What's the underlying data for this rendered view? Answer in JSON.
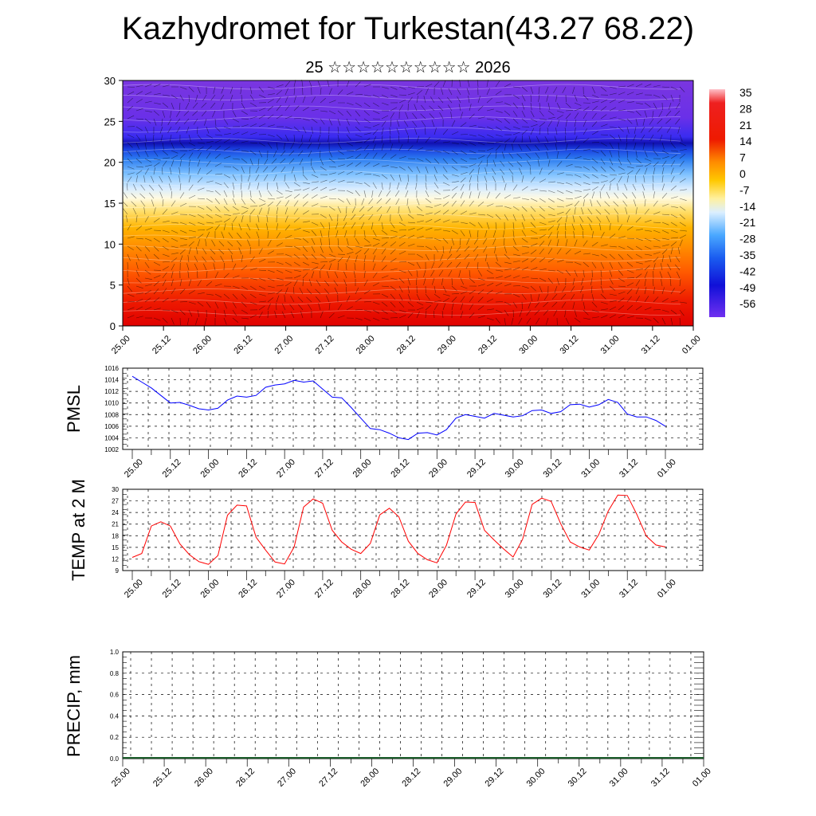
{
  "title": "Kazhydromet for Turkestan(43.27 68.22)",
  "subtitle": "25 ☆☆☆☆☆☆☆☆☆☆ 2026",
  "time_labels": [
    "25.00",
    "25.12",
    "26.00",
    "26.12",
    "27.00",
    "27.12",
    "28.00",
    "28.12",
    "29.00",
    "29.12",
    "30.00",
    "30.12",
    "31.00",
    "31.12",
    "01.00"
  ],
  "colors": {
    "pmsl": "#0000ff",
    "temp": "#ff0000",
    "precip_base": "#1a5c2a",
    "grid": "#000000"
  },
  "chart_data": [
    {
      "type": "heatmap",
      "name": "cross-section",
      "ylabel": "",
      "ylim": [
        0,
        30
      ],
      "y_ticks": [
        0,
        5,
        10,
        15,
        20,
        25,
        30
      ],
      "colorbar_labels": [
        "35",
        "28",
        "21",
        "14",
        "7",
        "0",
        "-7",
        "-14",
        "-21",
        "-28",
        "-35",
        "-42",
        "-49",
        "-56"
      ],
      "colorbar_range": [
        -60,
        38
      ]
    },
    {
      "type": "line",
      "name": "pmsl",
      "ylabel": "PMSL",
      "ylim": [
        1002,
        1016
      ],
      "y_ticks": [
        1002,
        1004,
        1006,
        1008,
        1010,
        1012,
        1014,
        1016
      ],
      "x": [
        0,
        0.25,
        0.5,
        0.75,
        1,
        1.25,
        1.5,
        1.75,
        2,
        2.25,
        2.5,
        2.75,
        3,
        3.25,
        3.5,
        3.75,
        4,
        4.25,
        4.5,
        4.75,
        5,
        5.25,
        5.5,
        5.75,
        6,
        6.25,
        6.5,
        6.75,
        7,
        7.25,
        7.5,
        7.75,
        8,
        8.25,
        8.5,
        8.75,
        9,
        9.25,
        9.5,
        9.75,
        10,
        10.25,
        10.5,
        10.75,
        11,
        11.25,
        11.5,
        11.75,
        12,
        12.25,
        12.5,
        12.75,
        13,
        13.25,
        13.5,
        13.75,
        14
      ],
      "values": [
        1014.6,
        1013.6,
        1012.6,
        1011.3,
        1010.0,
        1010.1,
        1009.6,
        1009.0,
        1008.8,
        1009.1,
        1010.5,
        1011.2,
        1011.0,
        1011.3,
        1012.7,
        1013.1,
        1013.3,
        1013.9,
        1013.6,
        1013.8,
        1012.4,
        1011.0,
        1010.9,
        1009.2,
        1007.4,
        1005.6,
        1005.4,
        1004.8,
        1004.0,
        1003.7,
        1004.8,
        1004.9,
        1004.5,
        1005.4,
        1007.4,
        1008.0,
        1007.7,
        1007.4,
        1008.2,
        1007.9,
        1007.6,
        1007.8,
        1008.7,
        1008.8,
        1008.2,
        1008.5,
        1009.7,
        1009.8,
        1009.3,
        1009.7,
        1010.6,
        1010.1,
        1008.1,
        1007.6,
        1007.6,
        1007.0,
        1006.0
      ]
    },
    {
      "type": "line",
      "name": "temp",
      "ylabel": "TEMP at 2 M",
      "ylim": [
        9,
        30
      ],
      "y_ticks": [
        9,
        12,
        15,
        18,
        21,
        24,
        27,
        30
      ],
      "x": [
        0,
        0.25,
        0.5,
        0.75,
        1,
        1.25,
        1.5,
        1.75,
        2,
        2.25,
        2.5,
        2.75,
        3,
        3.25,
        3.5,
        3.75,
        4,
        4.25,
        4.5,
        4.75,
        5,
        5.25,
        5.5,
        5.75,
        6,
        6.25,
        6.5,
        6.75,
        7,
        7.25,
        7.5,
        7.75,
        8,
        8.25,
        8.5,
        8.75,
        9,
        9.25,
        9.5,
        9.75,
        10,
        10.25,
        10.5,
        10.75,
        11,
        11.25,
        11.5,
        11.75,
        12,
        12.25,
        12.5,
        12.75,
        13,
        13.25,
        13.5,
        13.75,
        14
      ],
      "values": [
        12.4,
        13.4,
        20.5,
        21.6,
        20.5,
        15.9,
        13.1,
        11.3,
        10.6,
        12.9,
        23.3,
        25.9,
        25.7,
        17.6,
        14.3,
        11.2,
        10.7,
        15.1,
        25.4,
        27.5,
        26.4,
        19.4,
        16.4,
        14.5,
        13.4,
        16.0,
        23.4,
        25.1,
        22.9,
        16.6,
        13.4,
        11.8,
        11.0,
        15.5,
        23.6,
        26.7,
        26.6,
        19.4,
        16.9,
        14.6,
        12.5,
        17.1,
        26.1,
        27.7,
        26.9,
        21.1,
        16.4,
        15.1,
        14.3,
        18.3,
        24.4,
        28.5,
        28.4,
        23.5,
        17.9,
        15.6,
        15.1
      ]
    },
    {
      "type": "bar",
      "name": "precip",
      "ylabel": "PRECIP, mm",
      "ylim": [
        0,
        1
      ],
      "y_ticks": [
        "0.0",
        "0.2",
        "0.4",
        "0.6",
        "0.8",
        "1.0"
      ],
      "values": []
    }
  ]
}
